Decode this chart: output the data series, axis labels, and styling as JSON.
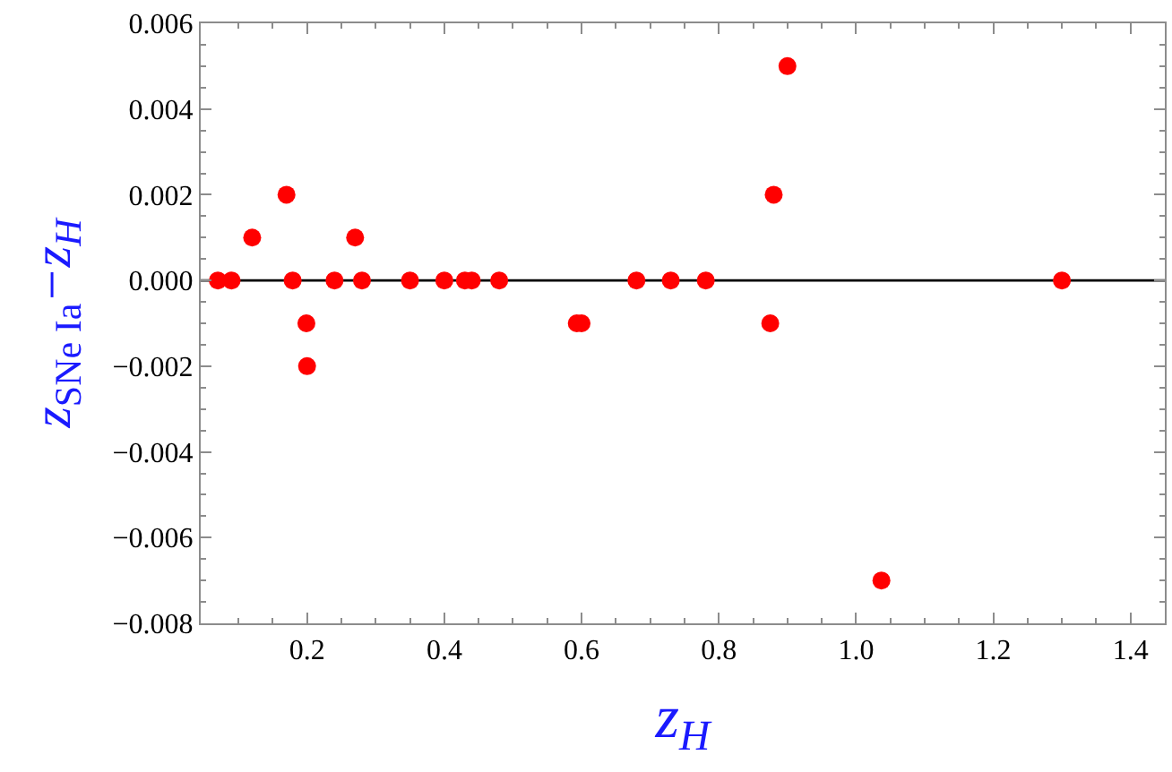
{
  "chart_data": {
    "type": "scatter",
    "xlabel": "z$_{H}$",
    "ylabel": "z$_{SNe Ia}$−z$_{H}$",
    "x": [
      0.07,
      0.09,
      0.12,
      0.17,
      0.179,
      0.199,
      0.2,
      0.24,
      0.27,
      0.28,
      0.35,
      0.4,
      0.43,
      0.44,
      0.48,
      0.593,
      0.6,
      0.68,
      0.73,
      0.781,
      0.875,
      0.88,
      0.9,
      1.037,
      1.3
    ],
    "values": [
      0,
      0,
      0.001,
      0.002,
      0,
      -0.001,
      -0.002,
      0,
      0.001,
      0,
      0,
      0,
      0,
      0,
      0,
      -0.001,
      -0.001,
      0,
      0,
      0,
      -0.001,
      0.002,
      0.005,
      -0.007,
      0
    ],
    "color": "#ff0000",
    "marker": "circle",
    "grid": false,
    "xlim": [
      0.045,
      1.45
    ],
    "ylim": [
      -0.008,
      0.006
    ],
    "xticks": [
      {
        "value": 0.1,
        "label": null
      },
      {
        "value": 0.15,
        "label": null
      },
      {
        "value": 0.2,
        "label": "0.2"
      },
      {
        "value": 0.25,
        "label": null
      },
      {
        "value": 0.3,
        "label": null
      },
      {
        "value": 0.35,
        "label": null
      },
      {
        "value": 0.4,
        "label": "0.4"
      },
      {
        "value": 0.45,
        "label": null
      },
      {
        "value": 0.5,
        "label": null
      },
      {
        "value": 0.55,
        "label": null
      },
      {
        "value": 0.6,
        "label": "0.6"
      },
      {
        "value": 0.65,
        "label": null
      },
      {
        "value": 0.7,
        "label": null
      },
      {
        "value": 0.75,
        "label": null
      },
      {
        "value": 0.8,
        "label": "0.8"
      },
      {
        "value": 0.85,
        "label": null
      },
      {
        "value": 0.9,
        "label": null
      },
      {
        "value": 0.95,
        "label": null
      },
      {
        "value": 1.0,
        "label": "1.0"
      },
      {
        "value": 1.05,
        "label": null
      },
      {
        "value": 1.1,
        "label": null
      },
      {
        "value": 1.15,
        "label": null
      },
      {
        "value": 1.2,
        "label": "1.2"
      },
      {
        "value": 1.25,
        "label": null
      },
      {
        "value": 1.3,
        "label": null
      },
      {
        "value": 1.35,
        "label": null
      },
      {
        "value": 1.4,
        "label": "1.4"
      }
    ],
    "yticks": [
      {
        "value": -0.008,
        "label": "−0.008"
      },
      {
        "value": -0.0075,
        "label": null
      },
      {
        "value": -0.007,
        "label": null
      },
      {
        "value": -0.0065,
        "label": null
      },
      {
        "value": -0.006,
        "label": "−0.006"
      },
      {
        "value": -0.0055,
        "label": null
      },
      {
        "value": -0.005,
        "label": null
      },
      {
        "value": -0.0045,
        "label": null
      },
      {
        "value": -0.004,
        "label": "−0.004"
      },
      {
        "value": -0.0035,
        "label": null
      },
      {
        "value": -0.003,
        "label": null
      },
      {
        "value": -0.0025,
        "label": null
      },
      {
        "value": -0.002,
        "label": "−0.002"
      },
      {
        "value": -0.0015,
        "label": null
      },
      {
        "value": -0.001,
        "label": null
      },
      {
        "value": -0.0005,
        "label": null
      },
      {
        "value": 0,
        "label": "0.000"
      },
      {
        "value": 0.0005,
        "label": null
      },
      {
        "value": 0.001,
        "label": null
      },
      {
        "value": 0.0015,
        "label": null
      },
      {
        "value": 0.002,
        "label": "0.002"
      },
      {
        "value": 0.0025,
        "label": null
      },
      {
        "value": 0.003,
        "label": null
      },
      {
        "value": 0.0035,
        "label": null
      },
      {
        "value": 0.004,
        "label": "0.004"
      },
      {
        "value": 0.0045,
        "label": null
      },
      {
        "value": 0.005,
        "label": null
      },
      {
        "value": 0.0055,
        "label": null
      },
      {
        "value": 0.006,
        "label": "0.006"
      }
    ],
    "ref_lines": [
      {
        "axis": "y",
        "value": 0,
        "color": "#000000"
      }
    ]
  }
}
